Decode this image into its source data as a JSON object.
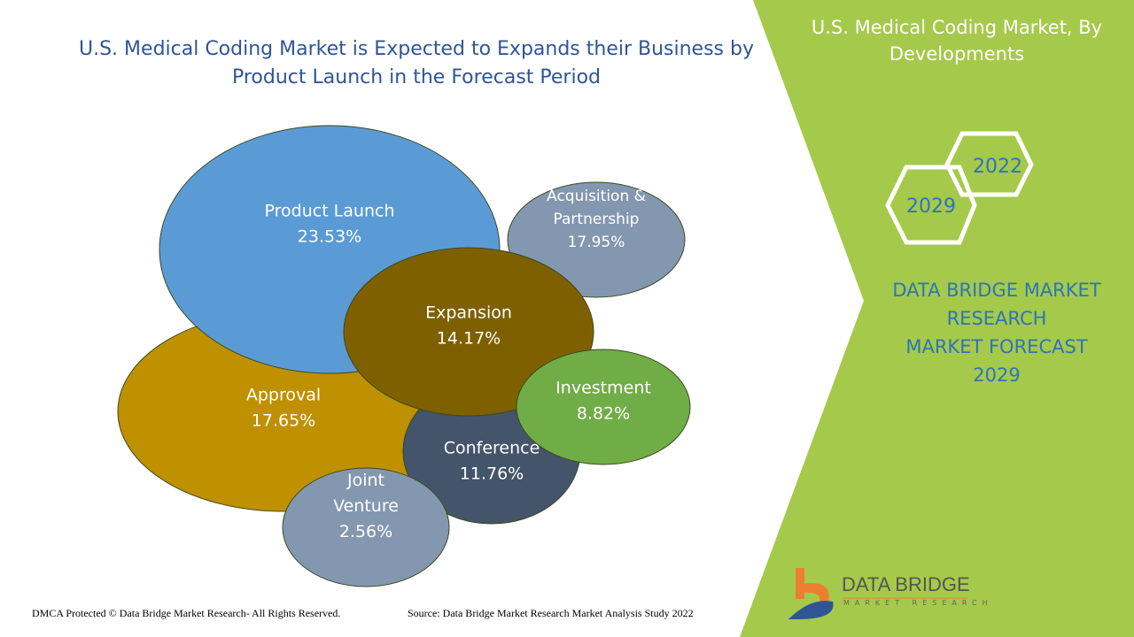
{
  "title": "U.S. Medical Coding Market is Expected to Expands their Business by Product Launch in the Forecast Period",
  "side": {
    "title": "U.S. Medical Coding Market, By Developments",
    "year_a": "2022",
    "year_b": "2029",
    "forecast_lines": [
      "DATA BRIDGE MARKET",
      "RESEARCH",
      "MARKET FORECAST",
      "2029"
    ]
  },
  "logo": {
    "name": "DATA BRIDGE",
    "tagline": "MARKET RESEARCH"
  },
  "footer": {
    "dmca": "DMCA Protected © Data Bridge Market Research- All Rights Reserved.",
    "source": "Source: Data Bridge Market Research Market Analysis Study 2022"
  },
  "colors": {
    "green": "#A5C94A",
    "title": "#2F5597"
  },
  "chart_data": {
    "type": "scatter",
    "title": "U.S. Medical Coding Market, By Developments",
    "series": [
      {
        "name": "Approval",
        "lines": [
          "Approval"
        ],
        "value": 17.65,
        "label": "17.65%",
        "color": "#BF9000"
      },
      {
        "name": "Product Launch",
        "lines": [
          "Product Launch"
        ],
        "value": 23.53,
        "label": "23.53%",
        "color": "#5B9BD5"
      },
      {
        "name": "Acquisition & Partnership",
        "lines": [
          "Acquisition &",
          "Partnership"
        ],
        "value": 17.95,
        "label": "17.95%",
        "color": "#8497B0"
      },
      {
        "name": "Conference",
        "lines": [
          "Conference"
        ],
        "value": 11.76,
        "label": "11.76%",
        "color": "#44546A"
      },
      {
        "name": "Expansion",
        "lines": [
          "Expansion"
        ],
        "value": 14.17,
        "label": "14.17%",
        "color": "#7F6000"
      },
      {
        "name": "Investment",
        "lines": [
          "Investment"
        ],
        "value": 8.82,
        "label": "8.82%",
        "color": "#70AD47"
      },
      {
        "name": "Joint Venture",
        "lines": [
          "Joint",
          "Venture"
        ],
        "value": 2.56,
        "label": "2.56%",
        "color": "#8497B0"
      }
    ]
  }
}
